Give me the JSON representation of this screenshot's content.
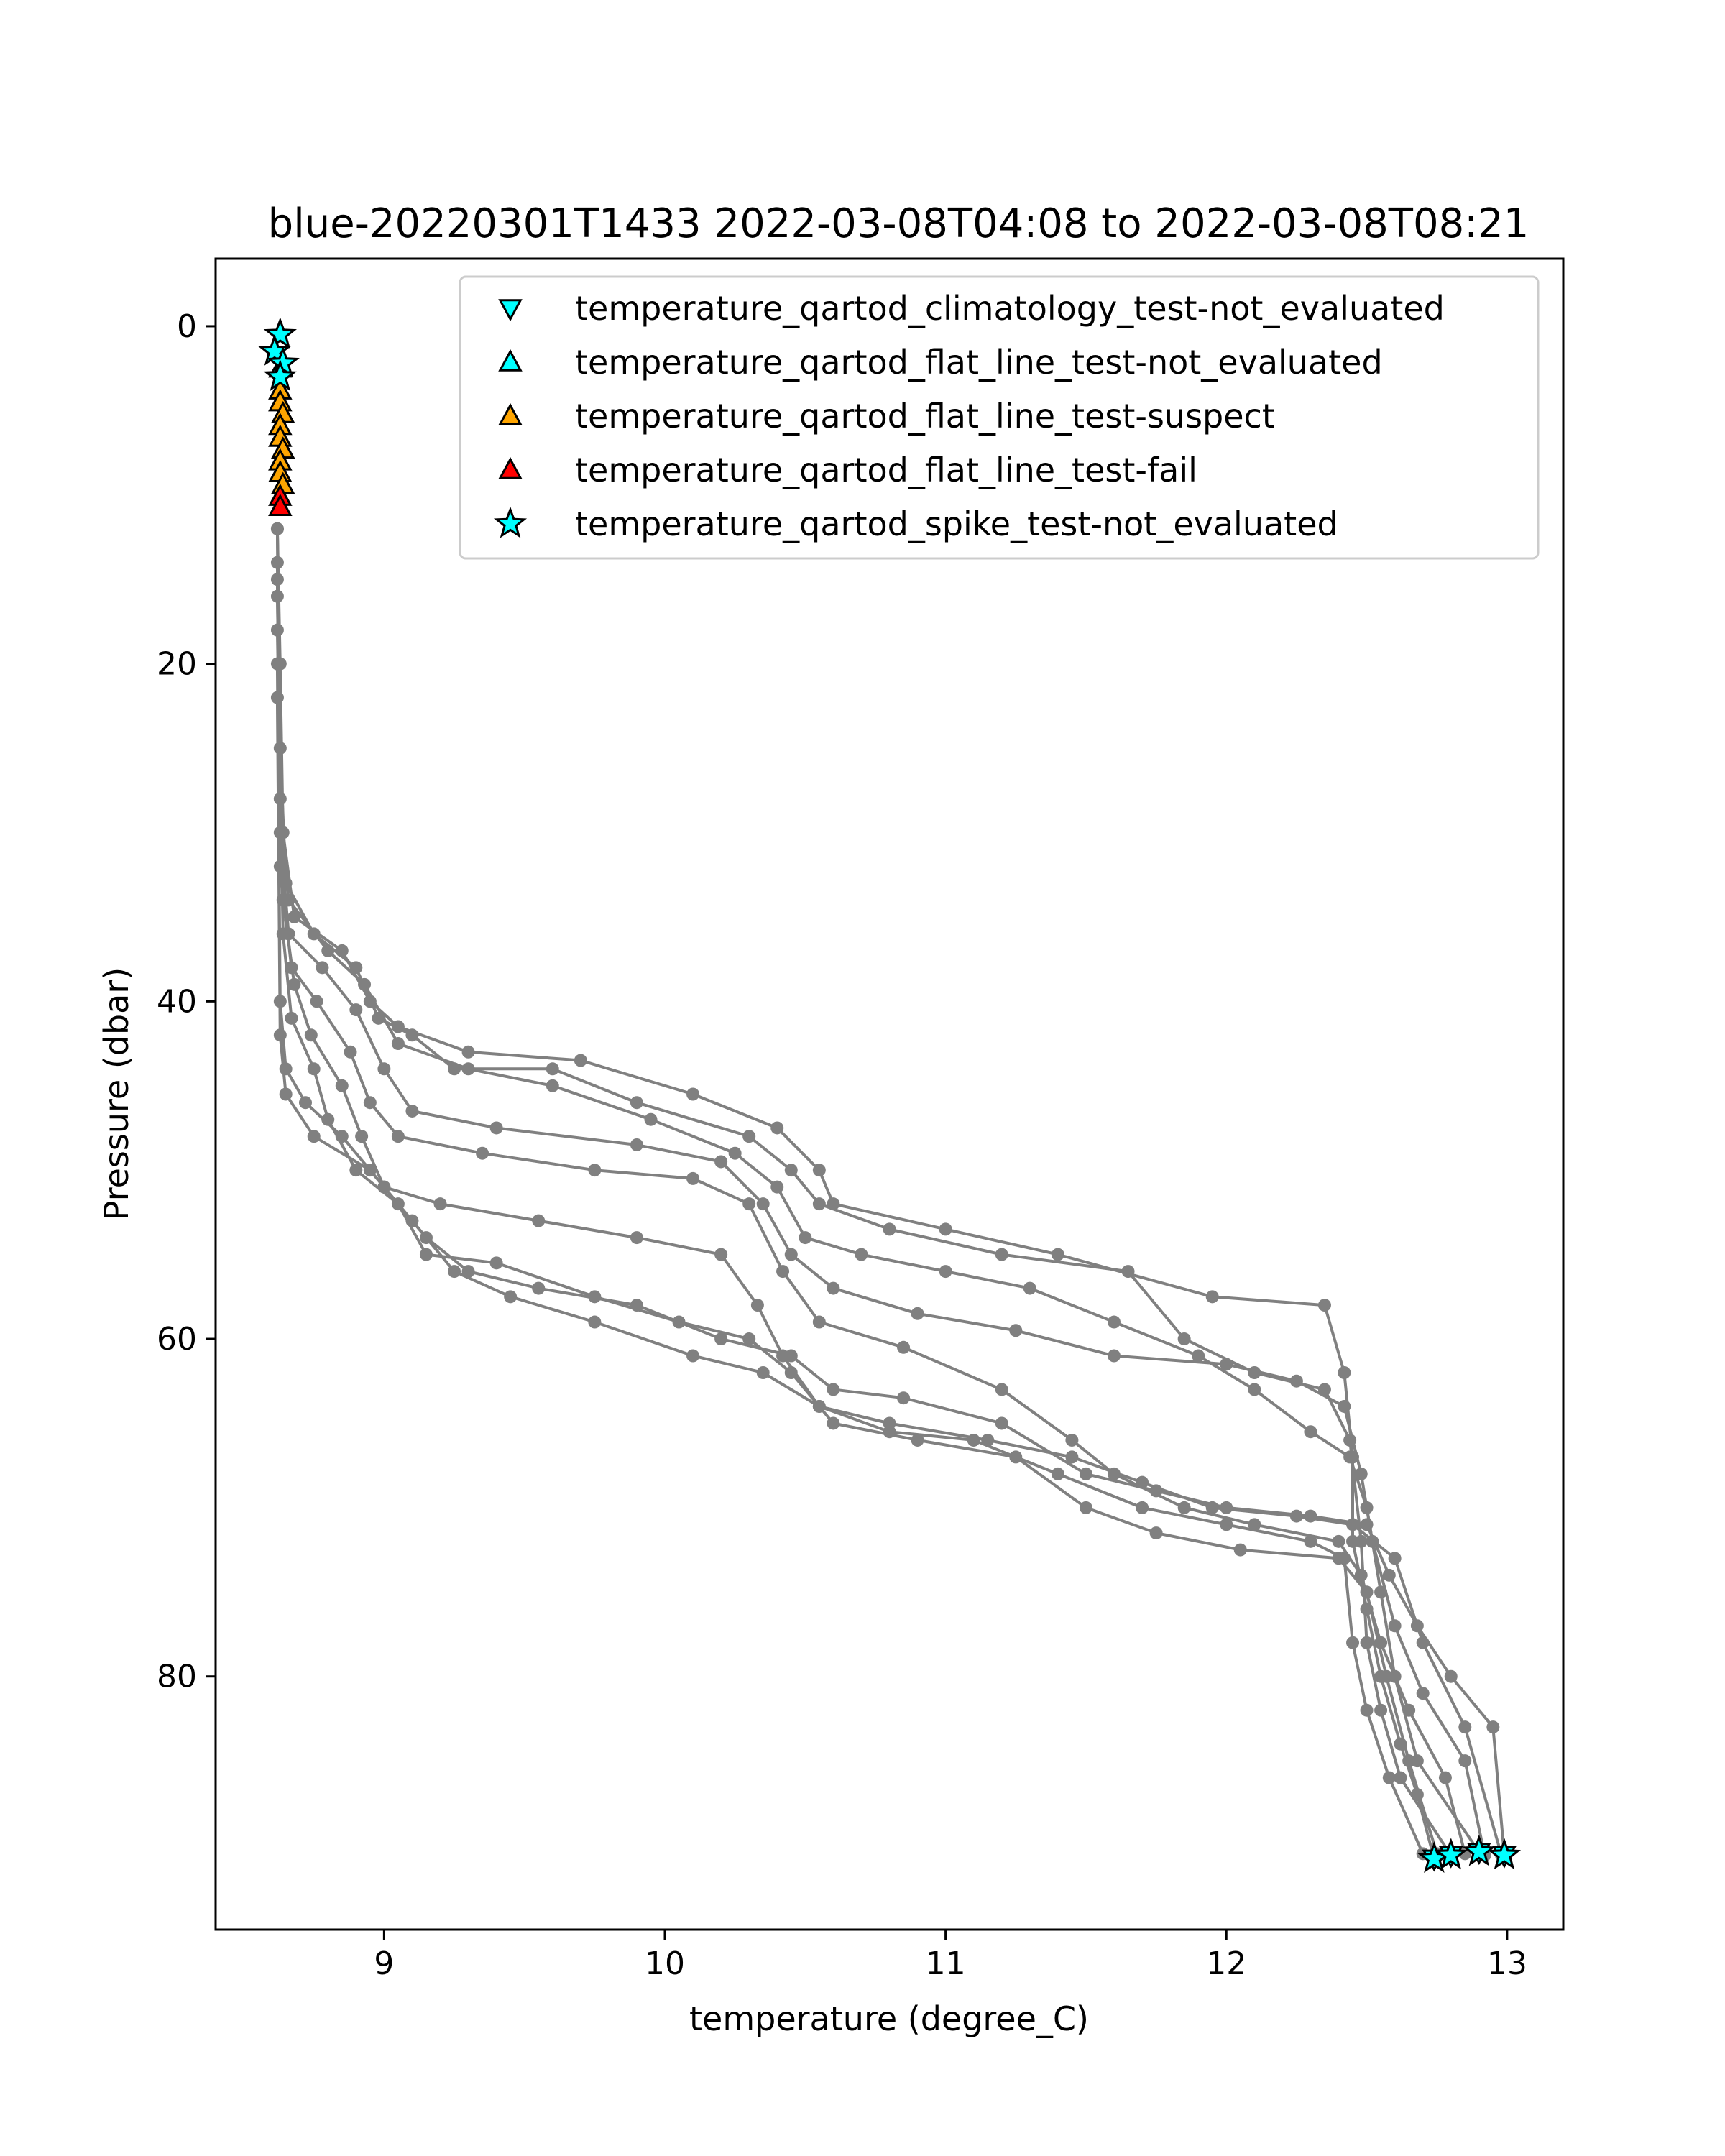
{
  "chart_data": {
    "type": "scatter",
    "title": "blue-20220301T1433 2022-03-08T04:08 to 2022-03-08T08:21",
    "xlabel": "temperature (degree_C)",
    "ylabel": "Pressure (dbar)",
    "xlim": [
      8.4,
      13.2
    ],
    "ylim": [
      95,
      -4
    ],
    "y_inverted": true,
    "xticks": [
      9,
      10,
      11,
      12,
      13
    ],
    "xtick_labels": [
      "9",
      "10",
      "11",
      "12",
      "13"
    ],
    "yticks": [
      0,
      20,
      40,
      60,
      80
    ],
    "ytick_labels": [
      "0",
      "20",
      "40",
      "60",
      "80"
    ],
    "grid": false,
    "legend_position": "upper right",
    "legend": [
      {
        "label": "temperature_qartod_climatology_test-not_evaluated",
        "marker": "triangle-down",
        "color": "#00ffff"
      },
      {
        "label": "temperature_qartod_flat_line_test-not_evaluated",
        "marker": "triangle-up",
        "color": "#00ffff"
      },
      {
        "label": "temperature_qartod_flat_line_test-suspect",
        "marker": "triangle-up",
        "color": "#ffa500"
      },
      {
        "label": "temperature_qartod_flat_line_test-fail",
        "marker": "triangle-up",
        "color": "#ff0000"
      },
      {
        "label": "temperature_qartod_spike_test-not_evaluated",
        "marker": "star",
        "color": "#00ffff"
      }
    ],
    "profile_color": "#808080",
    "profiles": [
      [
        [
          8.62,
          12
        ],
        [
          8.63,
          20
        ],
        [
          8.64,
          30
        ],
        [
          8.68,
          35
        ],
        [
          8.85,
          37
        ],
        [
          8.95,
          40
        ],
        [
          9.05,
          41.5
        ],
        [
          9.3,
          43
        ],
        [
          9.7,
          43.5
        ],
        [
          10.1,
          45.5
        ],
        [
          10.4,
          47.5
        ],
        [
          10.55,
          50
        ],
        [
          10.6,
          52
        ],
        [
          11.0,
          53.5
        ],
        [
          11.4,
          55
        ],
        [
          11.95,
          57.5
        ],
        [
          12.35,
          58
        ],
        [
          12.42,
          62
        ],
        [
          12.45,
          67
        ],
        [
          12.45,
          72
        ],
        [
          12.5,
          76
        ],
        [
          12.55,
          80
        ],
        [
          12.62,
          84
        ],
        [
          12.68,
          87
        ],
        [
          12.74,
          90.8
        ]
      ],
      [
        [
          8.62,
          12
        ],
        [
          8.63,
          25
        ],
        [
          8.65,
          33
        ],
        [
          8.75,
          36
        ],
        [
          8.9,
          38
        ],
        [
          8.98,
          41
        ],
        [
          9.1,
          42
        ],
        [
          9.25,
          44
        ],
        [
          9.6,
          44
        ],
        [
          9.9,
          46
        ],
        [
          10.3,
          48
        ],
        [
          10.45,
          50
        ],
        [
          10.55,
          52
        ],
        [
          10.8,
          53.5
        ],
        [
          11.2,
          55
        ],
        [
          11.65,
          56
        ],
        [
          11.85,
          60
        ],
        [
          12.1,
          62
        ],
        [
          12.35,
          63
        ],
        [
          12.44,
          66
        ],
        [
          12.48,
          72
        ],
        [
          12.5,
          78
        ],
        [
          12.55,
          82
        ],
        [
          12.62,
          86
        ],
        [
          12.8,
          90.6
        ]
      ],
      [
        [
          8.62,
          12
        ],
        [
          8.63,
          28
        ],
        [
          8.66,
          34
        ],
        [
          8.8,
          37
        ],
        [
          8.93,
          39
        ],
        [
          9.05,
          42.5
        ],
        [
          9.3,
          44
        ],
        [
          9.6,
          45
        ],
        [
          9.95,
          47
        ],
        [
          10.25,
          49
        ],
        [
          10.4,
          51
        ],
        [
          10.5,
          54
        ],
        [
          10.7,
          55
        ],
        [
          11.0,
          56
        ],
        [
          11.3,
          57
        ],
        [
          11.6,
          59
        ],
        [
          11.9,
          61
        ],
        [
          12.1,
          63
        ],
        [
          12.3,
          65.5
        ],
        [
          12.44,
          67
        ],
        [
          12.5,
          70
        ],
        [
          12.55,
          75
        ],
        [
          12.6,
          80
        ],
        [
          12.68,
          85
        ],
        [
          12.9,
          90.4
        ]
      ],
      [
        [
          8.62,
          14
        ],
        [
          8.63,
          30
        ],
        [
          8.66,
          36
        ],
        [
          8.78,
          38
        ],
        [
          8.9,
          40.5
        ],
        [
          9.0,
          44
        ],
        [
          9.1,
          46.5
        ],
        [
          9.4,
          47.5
        ],
        [
          9.9,
          48.5
        ],
        [
          10.2,
          49.5
        ],
        [
          10.35,
          52
        ],
        [
          10.45,
          55
        ],
        [
          10.6,
          57
        ],
        [
          10.9,
          58.5
        ],
        [
          11.25,
          59.5
        ],
        [
          11.6,
          61
        ],
        [
          12.0,
          61.5
        ],
        [
          12.25,
          62.5
        ],
        [
          12.42,
          64
        ],
        [
          12.48,
          68
        ],
        [
          12.52,
          72
        ],
        [
          12.6,
          77
        ],
        [
          12.7,
          81
        ],
        [
          12.85,
          85
        ],
        [
          12.92,
          90.6
        ]
      ],
      [
        [
          8.62,
          15
        ],
        [
          8.63,
          32
        ],
        [
          8.67,
          38
        ],
        [
          8.76,
          40
        ],
        [
          8.88,
          43
        ],
        [
          8.95,
          46
        ],
        [
          9.05,
          48
        ],
        [
          9.35,
          49
        ],
        [
          9.75,
          50
        ],
        [
          10.1,
          50.5
        ],
        [
          10.3,
          52
        ],
        [
          10.42,
          56
        ],
        [
          10.55,
          59
        ],
        [
          10.85,
          60.5
        ],
        [
          11.2,
          63
        ],
        [
          11.45,
          66
        ],
        [
          11.6,
          68
        ],
        [
          11.85,
          70
        ],
        [
          12.1,
          71
        ],
        [
          12.4,
          72
        ],
        [
          12.48,
          74
        ],
        [
          12.55,
          78
        ],
        [
          12.65,
          82
        ],
        [
          12.78,
          86
        ],
        [
          12.85,
          90.5
        ]
      ],
      [
        [
          8.62,
          16
        ],
        [
          8.64,
          34
        ],
        [
          8.68,
          39
        ],
        [
          8.74,
          42
        ],
        [
          8.85,
          45
        ],
        [
          8.92,
          48
        ],
        [
          9.0,
          51
        ],
        [
          9.2,
          52
        ],
        [
          9.55,
          53
        ],
        [
          9.9,
          54
        ],
        [
          10.2,
          55
        ],
        [
          10.33,
          58
        ],
        [
          10.42,
          61
        ],
        [
          10.55,
          64
        ],
        [
          10.8,
          65
        ],
        [
          11.15,
          66
        ],
        [
          11.45,
          67
        ],
        [
          11.7,
          68.5
        ],
        [
          11.95,
          70
        ],
        [
          12.25,
          70.5
        ],
        [
          12.45,
          71
        ],
        [
          12.6,
          73
        ],
        [
          12.7,
          78
        ],
        [
          12.85,
          83
        ],
        [
          12.98,
          90.6
        ]
      ],
      [
        [
          8.62,
          18
        ],
        [
          8.64,
          36
        ],
        [
          8.67,
          41
        ],
        [
          8.75,
          44
        ],
        [
          8.8,
          47
        ],
        [
          8.9,
          50
        ],
        [
          9.05,
          52
        ],
        [
          9.15,
          55
        ],
        [
          9.4,
          55.5
        ],
        [
          9.75,
          57.5
        ],
        [
          10.05,
          59
        ],
        [
          10.3,
          60
        ],
        [
          10.45,
          62
        ],
        [
          10.6,
          65
        ],
        [
          10.9,
          66
        ],
        [
          11.25,
          67
        ],
        [
          11.5,
          70
        ],
        [
          11.75,
          71.5
        ],
        [
          12.05,
          72.5
        ],
        [
          12.4,
          73
        ],
        [
          12.5,
          75
        ],
        [
          12.57,
          80
        ],
        [
          12.65,
          85
        ],
        [
          12.75,
          90.5
        ]
      ],
      [
        [
          8.62,
          20
        ],
        [
          8.63,
          40
        ],
        [
          8.65,
          44
        ],
        [
          8.72,
          46
        ],
        [
          8.85,
          48
        ],
        [
          9.0,
          51
        ],
        [
          9.15,
          54
        ],
        [
          9.3,
          56
        ],
        [
          9.55,
          57
        ],
        [
          9.9,
          58
        ],
        [
          10.2,
          60
        ],
        [
          10.45,
          61
        ],
        [
          10.6,
          63
        ],
        [
          10.85,
          63.5
        ],
        [
          11.2,
          65
        ],
        [
          11.5,
          68
        ],
        [
          11.75,
          69
        ],
        [
          12.0,
          70
        ],
        [
          12.3,
          70.5
        ],
        [
          12.5,
          71
        ],
        [
          12.58,
          74
        ],
        [
          12.68,
          77
        ],
        [
          12.8,
          80
        ],
        [
          12.95,
          83
        ],
        [
          12.99,
          90.6
        ]
      ],
      [
        [
          8.62,
          22
        ],
        [
          8.63,
          42
        ],
        [
          8.65,
          45.5
        ],
        [
          8.75,
          48
        ],
        [
          8.95,
          50
        ],
        [
          9.1,
          53
        ],
        [
          9.25,
          56
        ],
        [
          9.45,
          57.5
        ],
        [
          9.75,
          59
        ],
        [
          10.1,
          61
        ],
        [
          10.35,
          62
        ],
        [
          10.55,
          64
        ],
        [
          10.8,
          65.5
        ],
        [
          11.1,
          66
        ],
        [
          11.4,
          68
        ],
        [
          11.7,
          70
        ],
        [
          12.0,
          71
        ],
        [
          12.3,
          72
        ],
        [
          12.42,
          73
        ],
        [
          12.45,
          78
        ],
        [
          12.5,
          82
        ],
        [
          12.58,
          86
        ],
        [
          12.7,
          90.5
        ]
      ]
    ],
    "flag_markers": {
      "spike_test_not_evaluated_surface": [
        [
          8.63,
          0.5
        ],
        [
          8.61,
          1.5
        ],
        [
          8.64,
          2.2
        ],
        [
          8.63,
          3.0
        ]
      ],
      "flat_line_test_not_evaluated": [
        [
          8.63,
          2.5
        ]
      ],
      "flat_line_test_suspect": [
        [
          8.63,
          3.8
        ],
        [
          8.63,
          4.5
        ],
        [
          8.64,
          5.2
        ],
        [
          8.63,
          5.9
        ],
        [
          8.63,
          6.6
        ],
        [
          8.64,
          7.3
        ],
        [
          8.63,
          8.0
        ],
        [
          8.63,
          8.7
        ],
        [
          8.64,
          9.4
        ]
      ],
      "flat_line_test_fail": [
        [
          8.63,
          10.1
        ],
        [
          8.63,
          10.7
        ]
      ],
      "spike_test_not_evaluated_bottom": [
        [
          12.74,
          90.8
        ],
        [
          12.8,
          90.6
        ],
        [
          12.9,
          90.4
        ],
        [
          12.99,
          90.6
        ]
      ]
    }
  }
}
